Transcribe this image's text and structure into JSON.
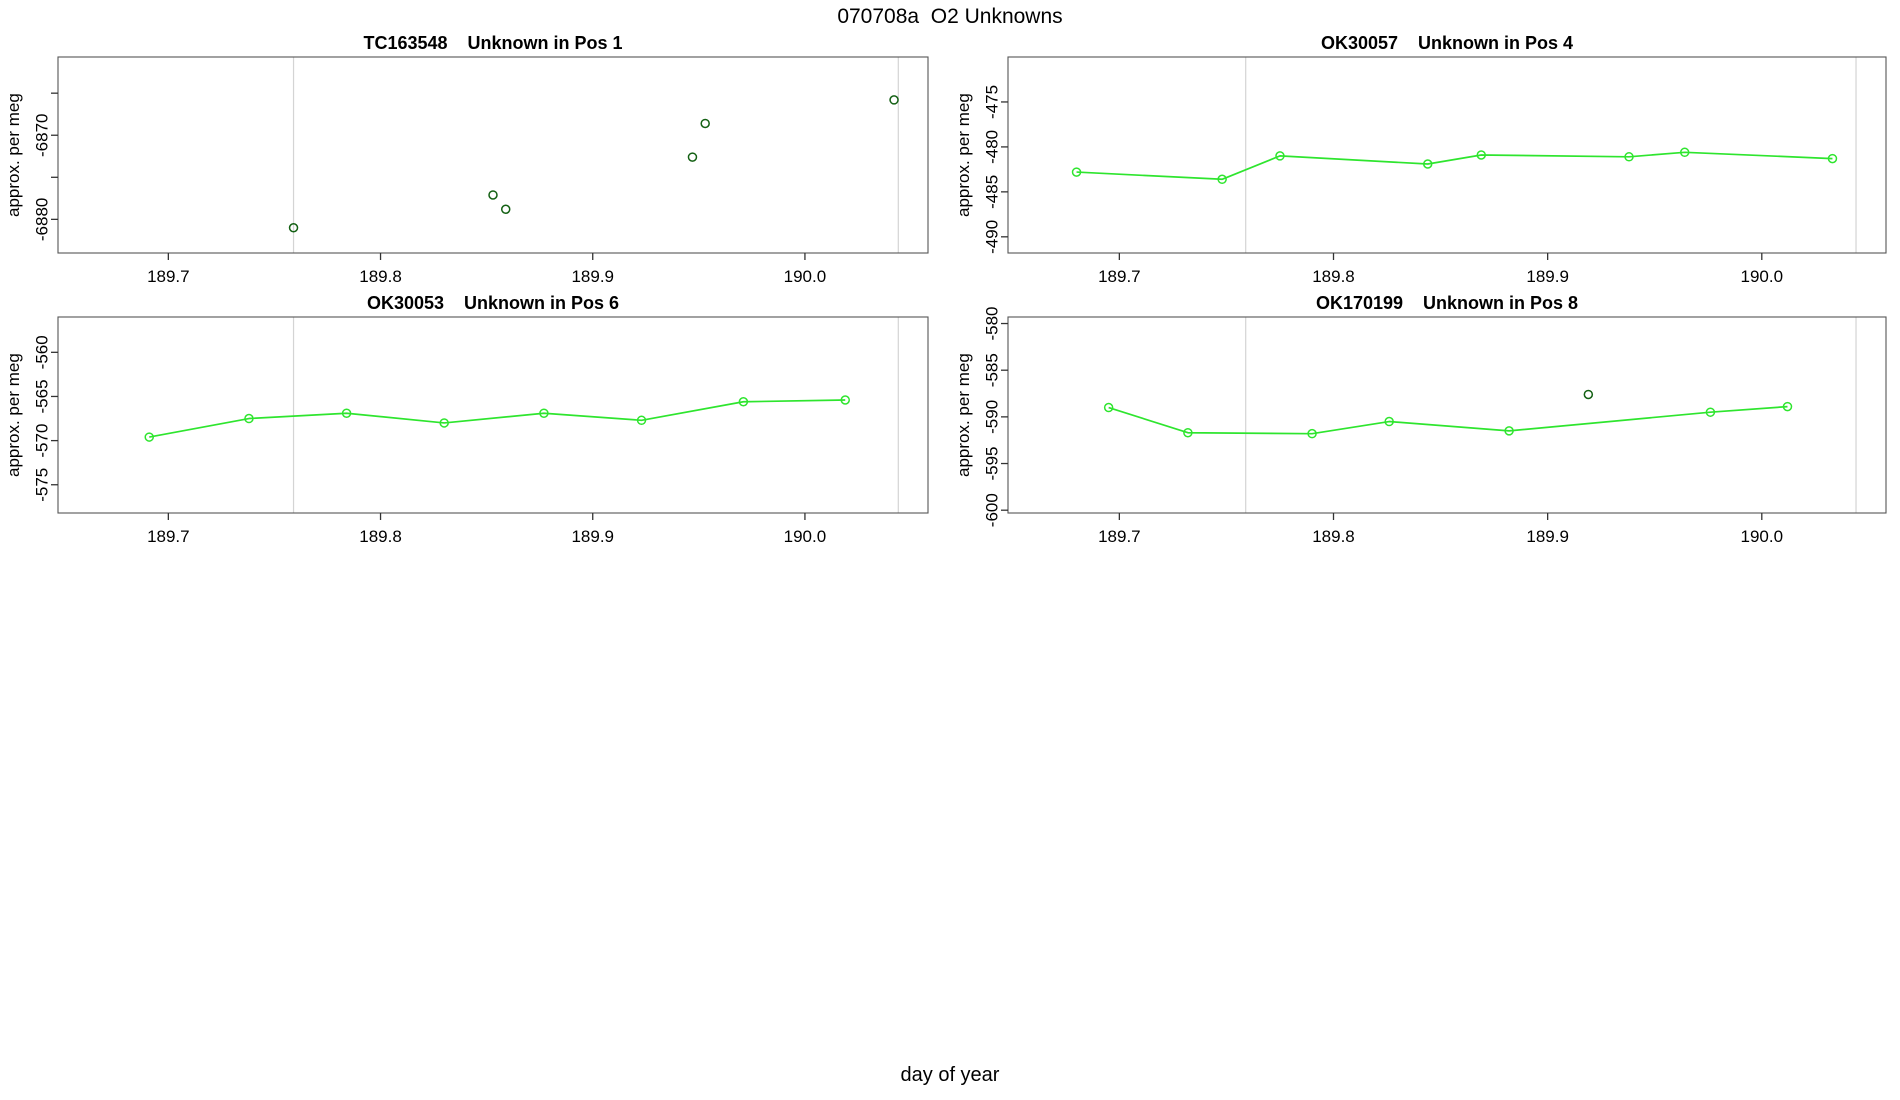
{
  "figure": {
    "title": "070708a  O2 Unknowns",
    "xlabel": "day of year",
    "background": "#ffffff"
  },
  "colors": {
    "line_green": "#2ee52e",
    "flag_green": "#136013",
    "grid": "#d4d4d4",
    "axis": "#555555",
    "tick": "#333333",
    "text": "#000000"
  },
  "chart_data": [
    {
      "id": "pos1",
      "type": "scatter",
      "title": "TC163548    Unknown in Pos 1",
      "ylabel": "approx. per meg",
      "xlim": [
        189.648,
        190.058
      ],
      "ylim": [
        -6884.0,
        -6860.7
      ],
      "grid": "vertical-only",
      "legend": "none",
      "xticks": [
        {
          "value": 189.7,
          "label": "189.7"
        },
        {
          "value": 189.8,
          "label": "189.8"
        },
        {
          "value": 189.9,
          "label": "189.9"
        },
        {
          "value": 190.0,
          "label": "190.0"
        }
      ],
      "yticks": [
        {
          "value": -6880,
          "label": "-6880"
        },
        {
          "value": -6875,
          "label": ""
        },
        {
          "value": -6870,
          "label": "-6870"
        },
        {
          "value": -6865,
          "label": ""
        }
      ],
      "gridlines_x": [
        189.759,
        190.044
      ],
      "series": [
        {
          "name": "flagged-samples",
          "mode": "points",
          "color": "flag_green",
          "points": [
            [
              189.759,
              -6881.0
            ],
            [
              189.853,
              -6877.1
            ],
            [
              189.859,
              -6878.8
            ],
            [
              189.947,
              -6872.6
            ],
            [
              189.953,
              -6868.6
            ],
            [
              190.042,
              -6865.8
            ]
          ]
        }
      ]
    },
    {
      "id": "pos4",
      "type": "line",
      "title": "OK30057    Unknown in Pos 4",
      "ylabel": "approx. per meg",
      "xlim": [
        189.648,
        190.058
      ],
      "ylim": [
        -491.8,
        -470.0
      ],
      "grid": "vertical-only",
      "legend": "none",
      "xticks": [
        {
          "value": 189.7,
          "label": "189.7"
        },
        {
          "value": 189.8,
          "label": "189.8"
        },
        {
          "value": 189.9,
          "label": "189.9"
        },
        {
          "value": 190.0,
          "label": "190.0"
        }
      ],
      "yticks": [
        {
          "value": -490,
          "label": "-490"
        },
        {
          "value": -485,
          "label": "-485"
        },
        {
          "value": -480,
          "label": "-480"
        },
        {
          "value": -475,
          "label": "-475"
        }
      ],
      "gridlines_x": [
        189.759,
        190.044
      ],
      "series": [
        {
          "name": "unknown-trace",
          "mode": "line+points",
          "color": "line_green",
          "points": [
            [
              189.68,
              -482.8
            ],
            [
              189.748,
              -483.6
            ],
            [
              189.775,
              -481.0
            ],
            [
              189.844,
              -481.9
            ],
            [
              189.869,
              -480.9
            ],
            [
              189.938,
              -481.1
            ],
            [
              189.964,
              -480.6
            ],
            [
              190.033,
              -481.3
            ]
          ]
        }
      ]
    },
    {
      "id": "pos6",
      "type": "line",
      "title": "OK30053    Unknown in Pos 6",
      "ylabel": "approx. per meg",
      "xlim": [
        189.648,
        190.058
      ],
      "ylim": [
        -578.2,
        -556.0
      ],
      "grid": "vertical-only",
      "legend": "none",
      "xticks": [
        {
          "value": 189.7,
          "label": "189.7"
        },
        {
          "value": 189.8,
          "label": "189.8"
        },
        {
          "value": 189.9,
          "label": "189.9"
        },
        {
          "value": 190.0,
          "label": "190.0"
        }
      ],
      "yticks": [
        {
          "value": -575,
          "label": "-575"
        },
        {
          "value": -570,
          "label": "-570"
        },
        {
          "value": -565,
          "label": "-565"
        },
        {
          "value": -560,
          "label": "-560"
        }
      ],
      "gridlines_x": [
        189.759,
        190.044
      ],
      "series": [
        {
          "name": "unknown-trace",
          "mode": "line+points",
          "color": "line_green",
          "points": [
            [
              189.691,
              -569.6
            ],
            [
              189.738,
              -567.5
            ],
            [
              189.784,
              -566.9
            ],
            [
              189.83,
              -568.0
            ],
            [
              189.877,
              -566.9
            ],
            [
              189.923,
              -567.7
            ],
            [
              189.971,
              -565.6
            ],
            [
              190.019,
              -565.4
            ]
          ]
        }
      ]
    },
    {
      "id": "pos8",
      "type": "line",
      "title": "OK170199    Unknown in Pos 8",
      "ylabel": "approx. per meg",
      "xlim": [
        189.648,
        190.058
      ],
      "ylim": [
        -600.3,
        -579.3
      ],
      "grid": "vertical-only",
      "legend": "none",
      "xticks": [
        {
          "value": 189.7,
          "label": "189.7"
        },
        {
          "value": 189.8,
          "label": "189.8"
        },
        {
          "value": 189.9,
          "label": "189.9"
        },
        {
          "value": 190.0,
          "label": "190.0"
        }
      ],
      "yticks": [
        {
          "value": -600,
          "label": "-600"
        },
        {
          "value": -595,
          "label": "-595"
        },
        {
          "value": -590,
          "label": "-590"
        },
        {
          "value": -585,
          "label": "-585"
        },
        {
          "value": -580,
          "label": "-580"
        }
      ],
      "gridlines_x": [
        189.759,
        190.044
      ],
      "series": [
        {
          "name": "unknown-trace",
          "mode": "line+points",
          "color": "line_green",
          "points": [
            [
              189.695,
              -589.0
            ],
            [
              189.732,
              -591.7
            ],
            [
              189.79,
              -591.8
            ],
            [
              189.826,
              -590.5
            ],
            [
              189.882,
              -591.5
            ],
            [
              189.976,
              -589.5
            ],
            [
              190.012,
              -588.9
            ]
          ]
        },
        {
          "name": "flagged-sample",
          "mode": "points",
          "color": "flag_green",
          "points": [
            [
              189.919,
              -587.6
            ]
          ]
        }
      ]
    }
  ]
}
